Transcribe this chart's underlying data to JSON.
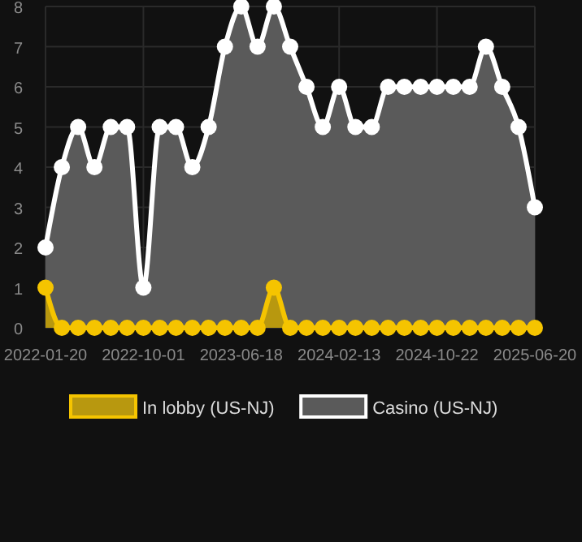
{
  "chart_data": {
    "type": "area",
    "categories": [
      "2022-01-20",
      null,
      null,
      null,
      null,
      null,
      "2022-10-01",
      null,
      null,
      null,
      null,
      null,
      "2023-06-18",
      null,
      null,
      null,
      null,
      null,
      "2024-02-13",
      null,
      null,
      null,
      null,
      null,
      "2024-10-22",
      null,
      null,
      null,
      null,
      null,
      "2025-06-20"
    ],
    "series": [
      {
        "name": "In lobby (US-NJ)",
        "color": "#f5c400",
        "values": [
          1,
          0,
          0,
          0,
          0,
          0,
          0,
          0,
          0,
          0,
          0,
          0,
          0,
          0,
          1,
          0,
          0,
          0,
          0,
          0,
          0,
          0,
          0,
          0,
          0,
          0,
          0,
          0,
          0,
          0,
          0
        ]
      },
      {
        "name": "Casino (US-NJ)",
        "color": "#ffffff",
        "values": [
          2,
          4,
          5,
          4,
          5,
          5,
          1,
          5,
          5,
          4,
          5,
          7,
          8,
          7,
          8,
          7,
          6,
          5,
          6,
          5,
          5,
          6,
          6,
          6,
          6,
          6,
          6,
          7,
          6,
          5,
          3
        ]
      }
    ],
    "ylim": [
      0,
      8
    ],
    "yticks": [
      0,
      1,
      2,
      3,
      4,
      5,
      6,
      7,
      8
    ],
    "grid": true,
    "legend": "bottom",
    "marker": "circle"
  }
}
